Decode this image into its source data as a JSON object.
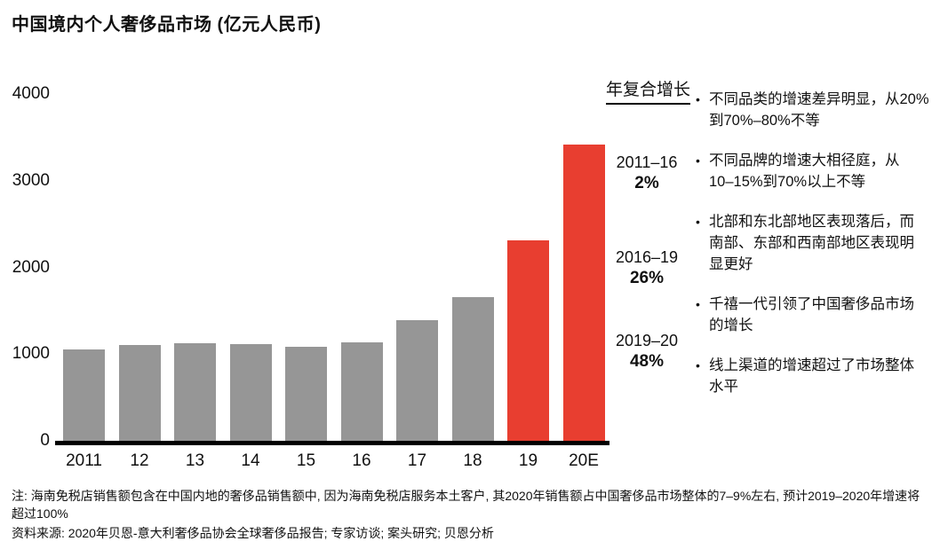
{
  "title": "中国境内个人奢侈品市场 (亿元人民币)",
  "chart_data": {
    "type": "bar",
    "title": "中国境内个人奢侈品市场 (亿元人民币)",
    "categories": [
      "2011",
      "12",
      "13",
      "14",
      "15",
      "16",
      "17",
      "18",
      "19",
      "20E"
    ],
    "values": [
      1050,
      1100,
      1130,
      1110,
      1080,
      1140,
      1390,
      1660,
      2310,
      3420
    ],
    "colors": [
      "#969696",
      "#969696",
      "#969696",
      "#969696",
      "#969696",
      "#969696",
      "#969696",
      "#969696",
      "#E83E30",
      "#E83E30"
    ],
    "default_color": "#969696",
    "highlight_color": "#E83E30",
    "xlabel": "",
    "ylabel": "",
    "ylim": [
      0,
      4000
    ],
    "yticks": [
      0,
      1000,
      2000,
      3000,
      4000
    ],
    "grid": false,
    "legend": false
  },
  "cagr": {
    "heading": "年复合增长",
    "entries": [
      {
        "period": "2011–16",
        "value": "2%"
      },
      {
        "period": "2016–19",
        "value": "26%"
      },
      {
        "period": "2019–20",
        "value": "48%"
      }
    ]
  },
  "bullets": [
    "不同品类的增速差异明显，从20%\n到70%–80%不等",
    "不同品牌的增速大相径庭，从\n10–15%到70%以上不等",
    "北部和东北部地区表现落后，而\n南部、东部和西南部地区表现明\n显更好",
    "千禧一代引领了中国奢侈品市场\n的增长",
    "线上渠道的增速超过了市场整体\n水平"
  ],
  "notes": {
    "note": "注: 海南免税店销售额包含在中国内地的奢侈品销售额中, 因为海南免税店服务本土客户, 其2020年销售额占中国奢侈品市场整体的7–9%左右, 预计2019–2020年增速将\n超过100%",
    "source": "资料来源: 2020年贝恩-意大利奢侈品协会全球奢侈品报告; 专家访谈; 案头研究; 贝恩分析"
  }
}
